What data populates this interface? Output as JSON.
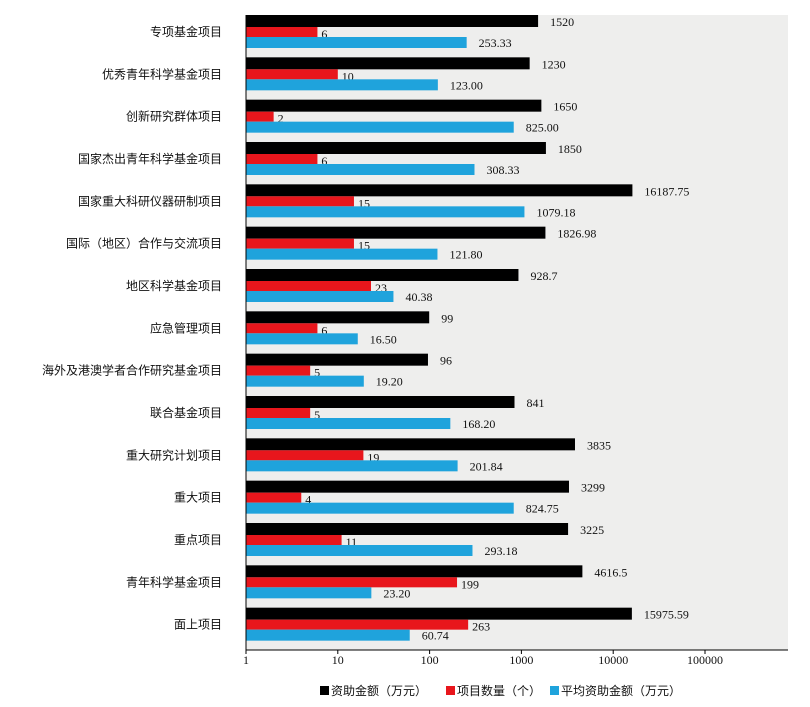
{
  "chart_data": {
    "type": "bar",
    "orientation": "horizontal",
    "x_scale": "log",
    "xlim": [
      1,
      600000
    ],
    "x_ticks": [
      "1",
      "10",
      "100",
      "1000",
      "10000",
      "100000"
    ],
    "categories": [
      "专项基金项目",
      "优秀青年科学基金项目",
      "创新研究群体项目",
      "国家杰出青年科学基金项目",
      "国家重大科研仪器研制项目",
      "国际（地区）合作与交流项目",
      "地区科学基金项目",
      "应急管理项目",
      "海外及港澳学者合作研究基金项目",
      "联合基金项目",
      "重大研究计划项目",
      "重大项目",
      "重点项目",
      "青年科学基金项目",
      "面上项目"
    ],
    "series": [
      {
        "name": "资助金额（万元）",
        "color": "#000000",
        "values": [
          1520,
          1230,
          1650,
          1850,
          16187.75,
          1826.98,
          928.7,
          99,
          96,
          841,
          3835,
          3299,
          3225,
          4616.5,
          15975.59
        ],
        "labels": [
          "1520",
          "1230",
          "1650",
          "1850",
          "16187.75",
          "1826.98",
          "928.7",
          "99",
          "96",
          "841",
          "3835",
          "3299",
          "3225",
          "4616.5",
          "15975.59"
        ]
      },
      {
        "name": "项目数量（个）",
        "color": "#e8161c",
        "values": [
          6,
          10,
          2,
          6,
          15,
          15,
          23,
          6,
          5,
          5,
          19,
          4,
          11,
          199,
          263
        ],
        "labels": [
          "6",
          "10",
          "2",
          "6",
          "15",
          "15",
          "23",
          "6",
          "5",
          "5",
          "19",
          "4",
          "11",
          "199",
          "263"
        ]
      },
      {
        "name": "平均资助金额（万元）",
        "color": "#1fa3dc",
        "values": [
          253.33,
          123.0,
          825.0,
          308.33,
          1079.18,
          121.8,
          40.38,
          16.5,
          19.2,
          168.2,
          201.84,
          824.75,
          293.18,
          23.2,
          60.74
        ],
        "labels": [
          "253.33",
          "123.00",
          "825.00",
          "308.33",
          "1079.18",
          "121.80",
          "40.38",
          "16.50",
          "19.20",
          "168.20",
          "201.84",
          "824.75",
          "293.18",
          "23.20",
          "60.74"
        ]
      }
    ],
    "legend_position": "bottom",
    "grid": false,
    "plot_background": "#eeeeed"
  }
}
